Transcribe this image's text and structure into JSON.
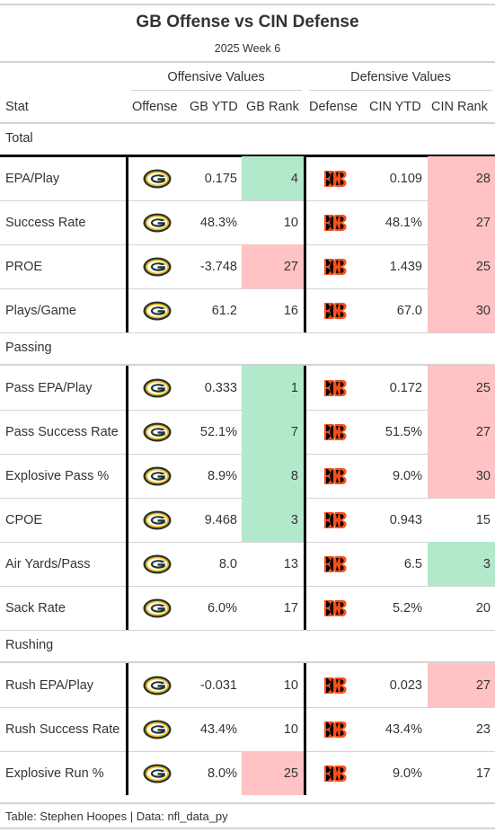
{
  "title": "GB Offense vs CIN Defense",
  "subtitle": "2025 Week 6",
  "spanners": {
    "offense": "Offensive Values",
    "defense": "Defensive Values"
  },
  "columns": {
    "stat": "Stat",
    "offense": "Offense",
    "gb_ytd": "GB YTD",
    "gb_rank": "GB Rank",
    "defense": "Defense",
    "cin_ytd": "CIN YTD",
    "cin_rank": "CIN Rank"
  },
  "colors": {
    "good": "#b2e9cb",
    "bad": "#ffc3c5",
    "gb_green": "#203731",
    "cin_orange": "#fb4f14"
  },
  "groups": [
    {
      "label": "Total",
      "rows": [
        {
          "stat": "EPA/Play",
          "gb_ytd": "0.175",
          "gb_rank": "4",
          "gb_rank_color": "#b2e9cb",
          "cin_ytd": "0.109",
          "cin_rank": "28",
          "cin_rank_color": "#ffc3c5"
        },
        {
          "stat": "Success Rate",
          "gb_ytd": "48.3%",
          "gb_rank": "10",
          "gb_rank_color": "",
          "cin_ytd": "48.1%",
          "cin_rank": "27",
          "cin_rank_color": "#ffc3c5"
        },
        {
          "stat": "PROE",
          "gb_ytd": "-3.748",
          "gb_rank": "27",
          "gb_rank_color": "#ffc3c5",
          "cin_ytd": "1.439",
          "cin_rank": "25",
          "cin_rank_color": "#ffc3c5"
        },
        {
          "stat": "Plays/Game",
          "gb_ytd": "61.2",
          "gb_rank": "16",
          "gb_rank_color": "",
          "cin_ytd": "67.0",
          "cin_rank": "30",
          "cin_rank_color": "#ffc3c5"
        }
      ]
    },
    {
      "label": "Passing",
      "rows": [
        {
          "stat": "Pass EPA/Play",
          "gb_ytd": "0.333",
          "gb_rank": "1",
          "gb_rank_color": "#b2e9cb",
          "cin_ytd": "0.172",
          "cin_rank": "25",
          "cin_rank_color": "#ffc3c5"
        },
        {
          "stat": "Pass Success Rate",
          "gb_ytd": "52.1%",
          "gb_rank": "7",
          "gb_rank_color": "#b2e9cb",
          "cin_ytd": "51.5%",
          "cin_rank": "27",
          "cin_rank_color": "#ffc3c5"
        },
        {
          "stat": "Explosive Pass %",
          "gb_ytd": "8.9%",
          "gb_rank": "8",
          "gb_rank_color": "#b2e9cb",
          "cin_ytd": "9.0%",
          "cin_rank": "30",
          "cin_rank_color": "#ffc3c5"
        },
        {
          "stat": "CPOE",
          "gb_ytd": "9.468",
          "gb_rank": "3",
          "gb_rank_color": "#b2e9cb",
          "cin_ytd": "0.943",
          "cin_rank": "15",
          "cin_rank_color": ""
        },
        {
          "stat": "Air Yards/Pass",
          "gb_ytd": "8.0",
          "gb_rank": "13",
          "gb_rank_color": "",
          "cin_ytd": "6.5",
          "cin_rank": "3",
          "cin_rank_color": "#b2e9cb"
        },
        {
          "stat": "Sack Rate",
          "gb_ytd": "6.0%",
          "gb_rank": "17",
          "gb_rank_color": "",
          "cin_ytd": "5.2%",
          "cin_rank": "20",
          "cin_rank_color": ""
        }
      ]
    },
    {
      "label": "Rushing",
      "rows": [
        {
          "stat": "Rush EPA/Play",
          "gb_ytd": "-0.031",
          "gb_rank": "10",
          "gb_rank_color": "",
          "cin_ytd": "0.023",
          "cin_rank": "27",
          "cin_rank_color": "#ffc3c5"
        },
        {
          "stat": "Rush Success Rate",
          "gb_ytd": "43.4%",
          "gb_rank": "10",
          "gb_rank_color": "",
          "cin_ytd": "43.4%",
          "cin_rank": "23",
          "cin_rank_color": ""
        },
        {
          "stat": "Explosive Run %",
          "gb_ytd": "8.0%",
          "gb_rank": "25",
          "gb_rank_color": "#ffc3c5",
          "cin_ytd": "9.0%",
          "cin_rank": "17",
          "cin_rank_color": ""
        }
      ]
    }
  ],
  "icons": {
    "offense": "packers-g-logo-icon",
    "defense": "bengals-b-logo-icon"
  },
  "footer": "Table: Stephen Hoopes | Data: nfl_data_py"
}
